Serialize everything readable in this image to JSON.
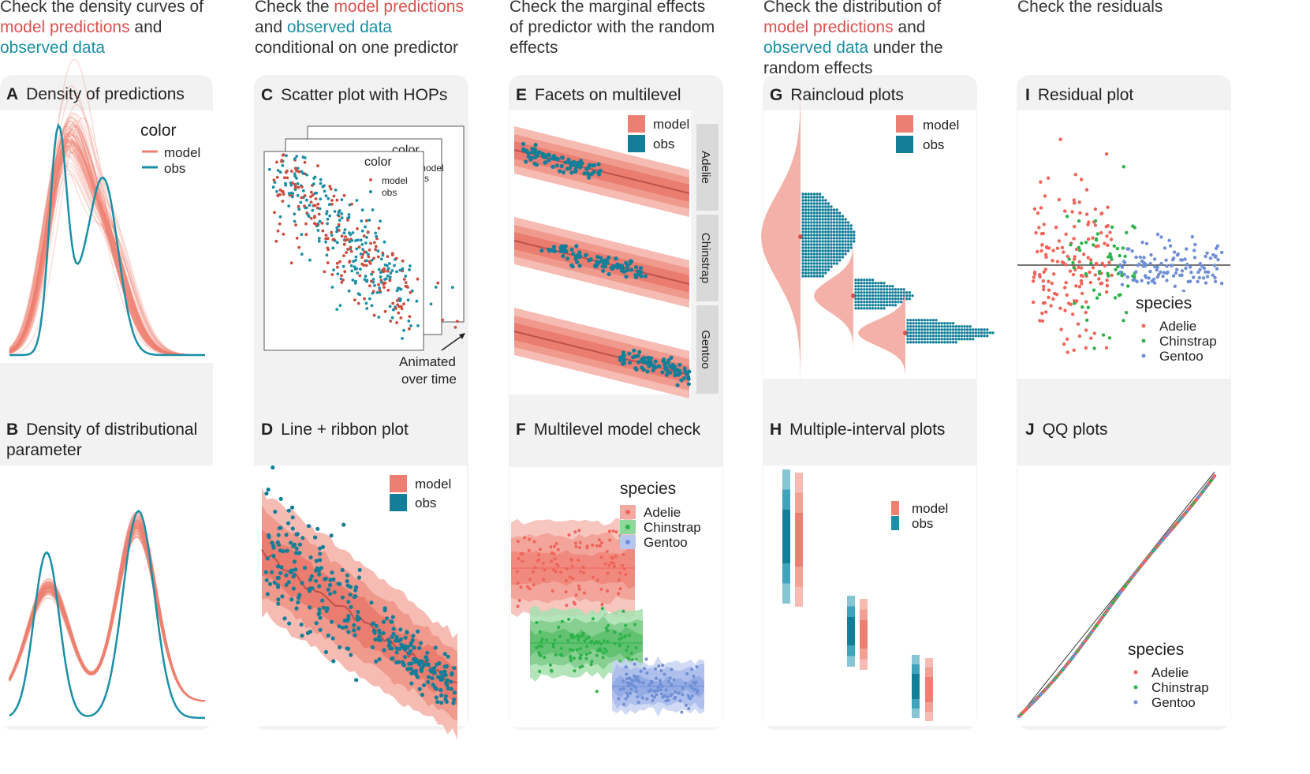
{
  "headers": {
    "col1": {
      "p1": "Check the density curves of",
      "m": "model predictions",
      "p2": " and",
      "o": "observed data",
      "p3": ""
    },
    "col2": {
      "p1": "Check the ",
      "m": "model predictions",
      "p2": " and ",
      "o": "observed data",
      "p3": " conditional on one predictor"
    },
    "col3": {
      "text": "Check the marginal effects of predictor with the random effects"
    },
    "col4": {
      "p1": "Check the distribution of ",
      "m": "model predictions",
      "p2": " and ",
      "o": "observed data",
      "p3": " under the random effects"
    },
    "col5": {
      "text": "Check the residuals"
    }
  },
  "panels": {
    "A": {
      "letter": "A",
      "title": "Density of predictions"
    },
    "B": {
      "letter": "B",
      "title": "Density of distributional parameter"
    },
    "C": {
      "letter": "C",
      "title": "Scatter plot with HOPs"
    },
    "D": {
      "letter": "D",
      "title": "Line + ribbon plot"
    },
    "E": {
      "letter": "E",
      "title": "Facets on multilevel"
    },
    "F": {
      "letter": "F",
      "title": "Multilevel model check"
    },
    "G": {
      "letter": "G",
      "title": "Raincloud plots"
    },
    "H": {
      "letter": "H",
      "title": "Multiple-interval plots"
    },
    "I": {
      "letter": "I",
      "title": "Residual plot"
    },
    "J": {
      "letter": "J",
      "title": "QQ plots"
    }
  },
  "legends": {
    "color_title": "color",
    "model": "model",
    "obs": "obs",
    "species_title": "species",
    "species": [
      "Adelie",
      "Chinstrap",
      "Gentoo"
    ],
    "hops_back": "color",
    "hops_back_model": "model",
    "hops_back_suffix": "s",
    "animated": "Animated",
    "over_time": "over time"
  },
  "colors": {
    "model": "#f08070",
    "obs": "#1a8fa5",
    "adelie": "#f0645a",
    "chinstrap": "#2db34a",
    "gentoo": "#6f8fd6"
  },
  "chart_data": [
    {
      "id": "A",
      "type": "line",
      "title": "Density of predictions",
      "series": [
        {
          "name": "model",
          "kind": "many posterior draws",
          "shape": "bimodal, peak near x=0.3"
        },
        {
          "name": "obs",
          "peaks_x": [
            0.27,
            0.5
          ],
          "peaks_y": [
            0.92,
            0.74
          ],
          "dip_y": 0.45
        }
      ]
    },
    {
      "id": "B",
      "type": "line",
      "title": "Density of distributional parameter",
      "series": [
        {
          "name": "model",
          "peaks_x": [
            0.2,
            0.65
          ],
          "peaks_y": [
            0.5,
            0.82
          ]
        },
        {
          "name": "obs",
          "peaks_x": [
            0.2,
            0.65
          ],
          "peaks_y": [
            0.7,
            0.96
          ],
          "dip_y": 0.05
        }
      ]
    },
    {
      "id": "C",
      "type": "scatter",
      "title": "Scatter plot with HOPs",
      "series": [
        "model",
        "obs"
      ],
      "note": "stacked animated frames"
    },
    {
      "id": "D",
      "type": "line",
      "title": "Line + ribbon plot",
      "ribbons": [
        0.5,
        0.8,
        0.95
      ],
      "series": [
        "model",
        "obs"
      ]
    },
    {
      "id": "E",
      "type": "line",
      "title": "Facets on multilevel",
      "facets": [
        "Adelie",
        "Chinstrap",
        "Gentoo"
      ],
      "series": [
        "model",
        "obs"
      ]
    },
    {
      "id": "F",
      "type": "scatter",
      "title": "Multilevel model check",
      "groups": [
        "Adelie",
        "Chinstrap",
        "Gentoo"
      ]
    },
    {
      "id": "G",
      "type": "area",
      "title": "Raincloud plots",
      "groups": 3,
      "series": [
        "model",
        "obs"
      ]
    },
    {
      "id": "H",
      "type": "bar",
      "title": "Multiple-interval plots",
      "groups": 3,
      "series": [
        "model",
        "obs"
      ]
    },
    {
      "id": "I",
      "type": "scatter",
      "title": "Residual plot",
      "groups": [
        "Adelie",
        "Chinstrap",
        "Gentoo"
      ],
      "reference_line_y": 0
    },
    {
      "id": "J",
      "type": "scatter",
      "title": "QQ plots",
      "groups": [
        "Adelie",
        "Chinstrap",
        "Gentoo"
      ],
      "reference": "identity line"
    }
  ]
}
